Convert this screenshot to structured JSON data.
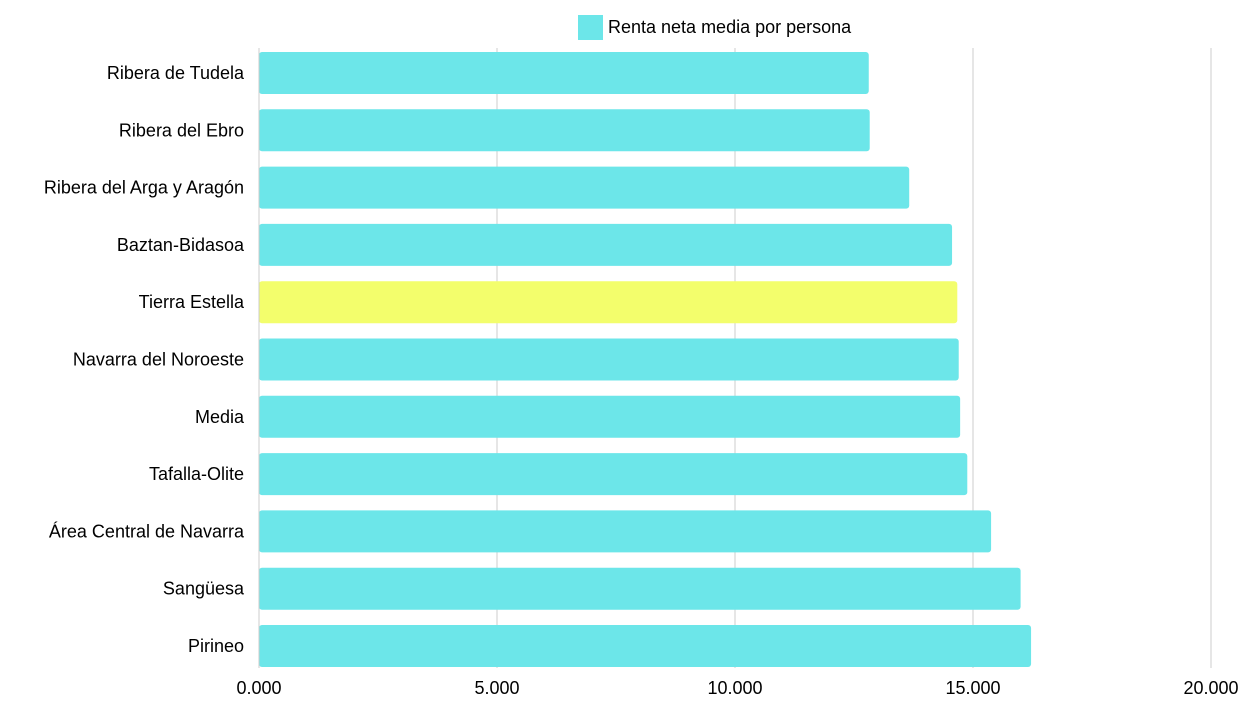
{
  "chart_data": {
    "type": "bar",
    "orientation": "horizontal",
    "categories": [
      "Ribera de Tudela",
      "Ribera del Ebro",
      "Ribera del Arga y Aragón",
      "Baztan-Bidasoa",
      "Tierra Estella",
      "Navarra del Noroeste",
      "Media",
      "Tafalla-Olite",
      "Área Central de Navarra",
      "Sangüesa",
      "Pirineo"
    ],
    "series": [
      {
        "name": "Renta neta media por persona",
        "values": [
          12810,
          12830,
          13660,
          14560,
          14670,
          14700,
          14730,
          14880,
          15380,
          16000,
          16220
        ]
      }
    ],
    "highlight": {
      "category": "Tierra Estella",
      "color": "#f3fe6c"
    },
    "bar_color": "#6ce6e9",
    "xlim": [
      0,
      20000
    ],
    "xticks": [
      0,
      5000,
      10000,
      15000,
      20000
    ],
    "xtick_labels": [
      "0.000",
      "5.000",
      "10.000",
      "15.000",
      "20.000"
    ],
    "grid": "vertical",
    "legend_position": "top"
  }
}
